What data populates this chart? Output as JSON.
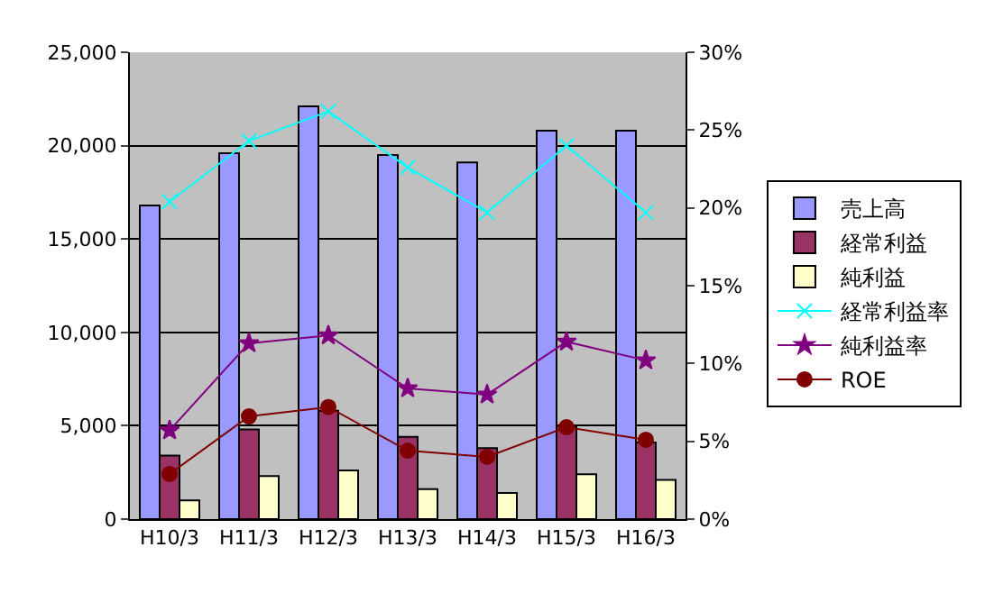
{
  "chart_data": {
    "type": "bar",
    "categories": [
      "H10/3",
      "H11/3",
      "H12/3",
      "H13/3",
      "H14/3",
      "H15/3",
      "H16/3"
    ],
    "series": [
      {
        "name": "売上高",
        "color": "#9999ff",
        "values": [
          16800,
          19600,
          22100,
          19500,
          19100,
          20800,
          20800
        ]
      },
      {
        "name": "経常利益",
        "color": "#993366",
        "values": [
          3400,
          4800,
          5800,
          4400,
          3800,
          5000,
          4100
        ]
      },
      {
        "name": "純利益",
        "color": "#ffffcc",
        "values": [
          1000,
          2300,
          2600,
          1600,
          1400,
          2400,
          2100
        ]
      },
      {
        "name": "経常利益率",
        "type": "line",
        "axis": "y2",
        "marker": "cross",
        "color": "#00ffff",
        "values": [
          20.4,
          24.3,
          26.2,
          22.6,
          19.7,
          24.0,
          19.7
        ]
      },
      {
        "name": "純利益率",
        "type": "line",
        "axis": "y2",
        "marker": "star",
        "color": "#800080",
        "values": [
          5.7,
          11.3,
          11.8,
          8.4,
          8.0,
          11.4,
          10.2
        ]
      },
      {
        "name": "ROE",
        "type": "line",
        "axis": "y2",
        "marker": "circle",
        "color": "#800000",
        "values": [
          2.9,
          6.6,
          7.2,
          4.4,
          4.0,
          5.9,
          5.1
        ]
      }
    ],
    "ylim": [
      0,
      25000
    ],
    "yticks": [
      {
        "value": 0,
        "label": "0"
      },
      {
        "value": 5000,
        "label": "5,000"
      },
      {
        "value": 10000,
        "label": "10,000"
      },
      {
        "value": 15000,
        "label": "15,000"
      },
      {
        "value": 20000,
        "label": "20,000"
      },
      {
        "value": 25000,
        "label": "25,000"
      }
    ],
    "y2lim": [
      0,
      30
    ],
    "y2ticks": [
      {
        "value": 0,
        "label": "0%"
      },
      {
        "value": 5,
        "label": "5%"
      },
      {
        "value": 10,
        "label": "10%"
      },
      {
        "value": 15,
        "label": "15%"
      },
      {
        "value": 20,
        "label": "20%"
      },
      {
        "value": 25,
        "label": "25%"
      },
      {
        "value": 30,
        "label": "30%"
      }
    ],
    "grid": "y",
    "legend": "right"
  }
}
